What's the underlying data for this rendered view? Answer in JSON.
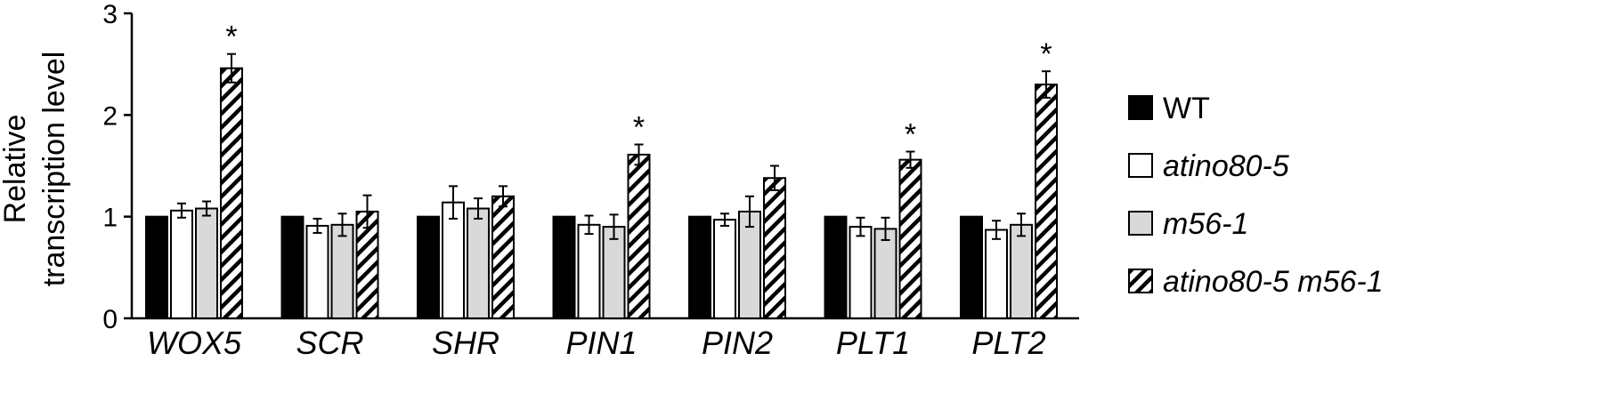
{
  "chart_data": {
    "type": "bar",
    "ylabel_lines": [
      "Relative",
      "transcription level"
    ],
    "ylim": [
      0,
      3
    ],
    "yticks": [
      "0",
      "1",
      "2",
      "3"
    ],
    "categories": [
      "WOX5",
      "SCR",
      "SHR",
      "PIN1",
      "PIN2",
      "PLT1",
      "PLT2"
    ],
    "series": [
      {
        "name": "WT",
        "fill": "solid-black",
        "values": [
          1,
          1,
          1,
          1,
          1,
          1,
          1
        ],
        "errors": [
          0,
          0,
          0,
          0,
          0,
          0,
          0
        ]
      },
      {
        "name": "atino80-5",
        "fill": "white",
        "values": [
          1.06,
          0.91,
          1.14,
          0.92,
          0.97,
          0.9,
          0.87
        ],
        "errors": [
          0.07,
          0.07,
          0.16,
          0.09,
          0.06,
          0.09,
          0.09
        ]
      },
      {
        "name": "m56-1",
        "fill": "light-gray",
        "values": [
          1.08,
          0.92,
          1.08,
          0.9,
          1.05,
          0.88,
          0.92
        ],
        "errors": [
          0.07,
          0.11,
          0.1,
          0.12,
          0.15,
          0.11,
          0.11
        ]
      },
      {
        "name": "atino80-5 m56-1",
        "fill": "diagonal-hatch",
        "values": [
          2.46,
          1.05,
          1.2,
          1.61,
          1.38,
          1.56,
          2.3
        ],
        "errors": [
          0.14,
          0.16,
          0.1,
          0.1,
          0.12,
          0.08,
          0.13
        ]
      }
    ],
    "significance": [
      {
        "category": "WOX5",
        "series": "atino80-5 m56-1",
        "mark": "*"
      },
      {
        "category": "PIN1",
        "series": "atino80-5 m56-1",
        "mark": "*"
      },
      {
        "category": "PLT1",
        "series": "atino80-5 m56-1",
        "mark": "*"
      },
      {
        "category": "PLT2",
        "series": "atino80-5 m56-1",
        "mark": "*"
      }
    ],
    "legend_position": "right",
    "grid": false,
    "colors": {
      "black": "#000000",
      "white": "#ffffff",
      "gray": "#d9d9d9"
    }
  }
}
